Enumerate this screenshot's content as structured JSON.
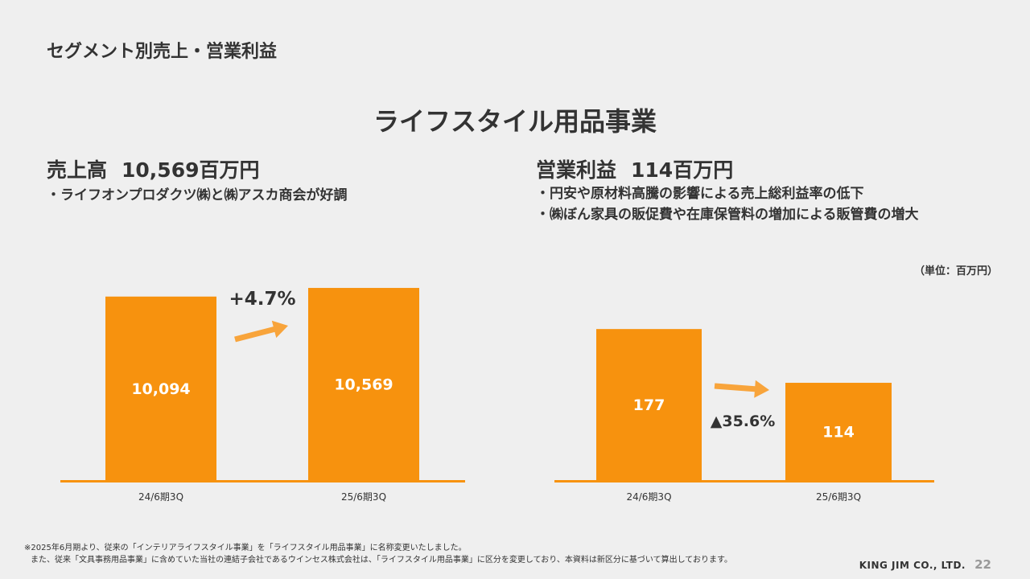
{
  "page": {
    "title": "セグメント別売上・営業利益",
    "section_title": "ライフスタイル用品事業",
    "unit_note": "（単位：百万円）",
    "footnotes": [
      "※2025年6月期より、従来の「インテリアライフスタイル事業」を「ライフスタイル用品事業」に名称変更いたしました。",
      "また、従来「文具事務用品事業」に含めていた当社の連結子会社であるウインセス株式会社は、「ライフスタイル用品事業」に区分を変更しており、本資料は新区分に基づいて算出しております。"
    ],
    "company": "KING JIM CO., LTD.",
    "page_number": "22"
  },
  "sales": {
    "heading_label": "売上高",
    "heading_value": "10,569百万円",
    "bullets": [
      "・ライフオンプロダクツ㈱と㈱アスカ商会が好調"
    ]
  },
  "profit": {
    "heading_label": "営業利益",
    "heading_value": "114百万円",
    "bullets": [
      "・円安や原材料高騰の影響による売上総利益率の低下",
      "・㈱ぼん家具の販促費や在庫保管料の増加による販管費の増大"
    ]
  },
  "colors": {
    "bar": "#f7920e",
    "arrow": "#f8a43b",
    "background": "#efefef",
    "text": "#333333"
  },
  "chart_data": [
    {
      "type": "bar",
      "categories": [
        "24/6期3Q",
        "25/6期3Q"
      ],
      "values": [
        10094,
        10569
      ],
      "value_labels": [
        "10,094",
        "10,569"
      ],
      "change_label": "+4.7%",
      "ylim": [
        0,
        11500
      ],
      "grid": false
    },
    {
      "type": "bar",
      "categories": [
        "24/6期3Q",
        "25/6期3Q"
      ],
      "values": [
        177,
        114
      ],
      "value_labels": [
        "177",
        "114"
      ],
      "change_label": "▲35.6%",
      "ylim": [
        0,
        245
      ],
      "grid": false
    }
  ]
}
